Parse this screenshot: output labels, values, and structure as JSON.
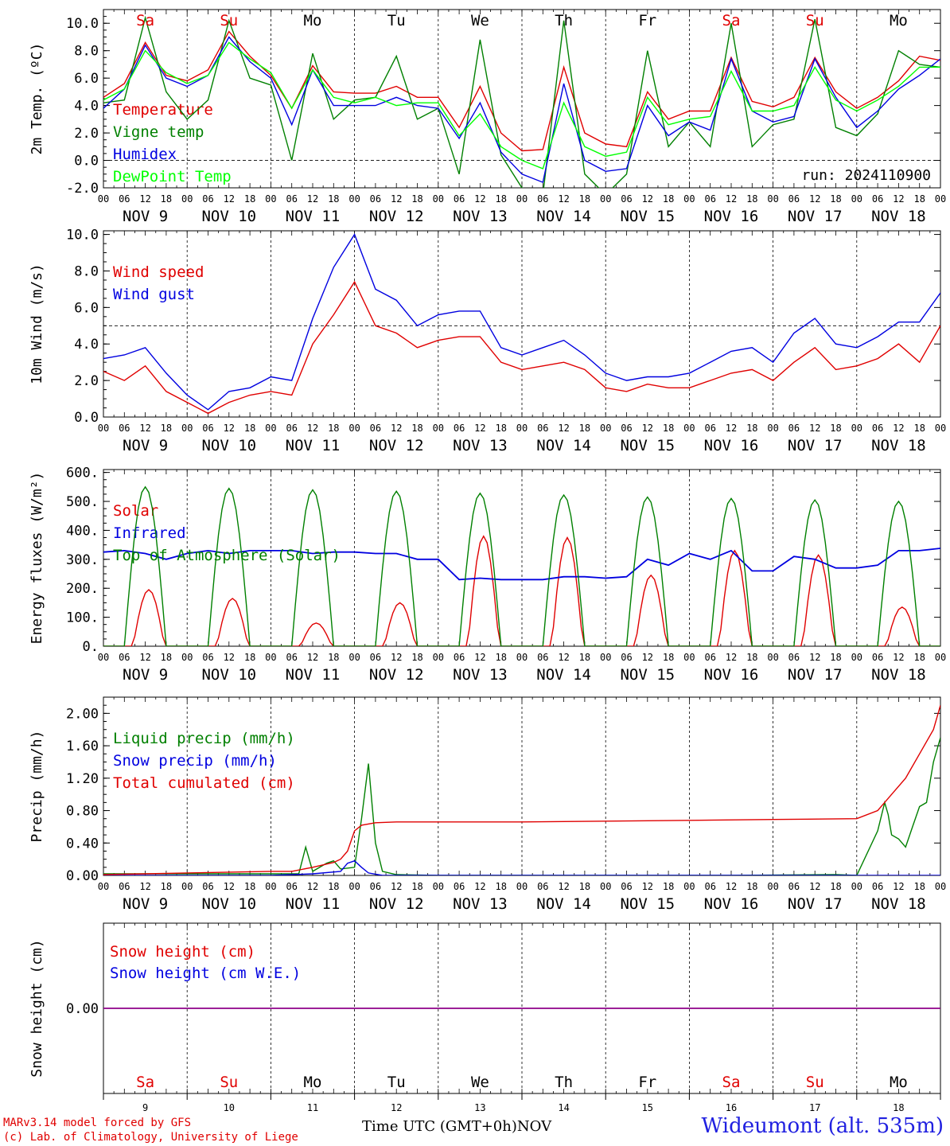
{
  "footer": {
    "credit_line1": "MARv3.14 model forced by GFS",
    "credit_line2": "(c) Lab. of Climatology, University of Liege",
    "xaxis_title": "Time UTC (GMT+0h)",
    "month": "NOV",
    "station": "Wideumont (alt. 535m)"
  },
  "colors": {
    "red": "#e00000",
    "green": "#008000",
    "blue": "#0000e0",
    "lightgreen": "#00ff00",
    "purple": "#8000a0"
  },
  "time_axis": {
    "hour_ticks": [
      "00",
      "06",
      "12",
      "18"
    ],
    "day_labels": [
      "NOV  9",
      "NOV 10",
      "NOV 11",
      "NOV 12",
      "NOV 13",
      "NOV 14",
      "NOV 15",
      "NOV 16",
      "NOV 17",
      "NOV 18"
    ],
    "weekdays": [
      "Sa",
      "Su",
      "Mo",
      "Tu",
      "We",
      "Th",
      "Fr",
      "Sa",
      "Su",
      "Mo"
    ],
    "weekend": [
      true,
      true,
      false,
      false,
      false,
      false,
      false,
      true,
      true,
      false
    ],
    "day_numbers": [
      "9",
      "10",
      "11",
      "12",
      "13",
      "14",
      "15",
      "16",
      "17",
      "18"
    ]
  },
  "chart_data": [
    {
      "type": "line",
      "ylabel": "2m Temp. (ºC)",
      "ylim": [
        -2,
        11
      ],
      "yticks": [
        "-2.0",
        "0.0",
        "2.0",
        "4.0",
        "6.0",
        "8.0",
        "10.0"
      ],
      "ytick_values": [
        -2,
        0,
        2,
        4,
        6,
        8,
        10
      ],
      "reference_line": 0,
      "run_label": "run: 2024110900",
      "series": [
        {
          "name": "Temperature",
          "color": "red",
          "x": [
            0,
            6,
            12,
            18,
            24,
            30,
            36,
            42,
            48,
            54,
            60,
            66,
            72,
            78,
            84,
            90,
            96,
            102,
            108,
            114,
            120,
            126,
            132,
            138,
            144,
            150,
            156,
            162,
            168,
            174,
            180,
            186,
            192,
            198,
            204,
            210,
            216,
            222,
            228,
            234,
            240
          ],
          "y": [
            4.6,
            5.6,
            8.6,
            6.2,
            5.8,
            6.6,
            9.4,
            7.6,
            6.2,
            3.8,
            6.9,
            5.0,
            4.9,
            4.9,
            5.4,
            4.6,
            4.6,
            2.4,
            5.4,
            2.0,
            0.7,
            0.8,
            6.8,
            2.0,
            1.2,
            1.0,
            5.0,
            3.0,
            3.6,
            3.6,
            7.5,
            4.3,
            3.9,
            4.6,
            7.5,
            5.0,
            3.8,
            4.6,
            5.8,
            7.6,
            7.3
          ]
        },
        {
          "name": "Vigne temp",
          "color": "green",
          "x": [
            0,
            6,
            12,
            18,
            24,
            30,
            36,
            42,
            48,
            54,
            60,
            66,
            72,
            78,
            84,
            90,
            96,
            102,
            108,
            114,
            120,
            126,
            132,
            138,
            144,
            150,
            156,
            162,
            168,
            174,
            180,
            186,
            192,
            198,
            204,
            210,
            216,
            222,
            228,
            234,
            240
          ],
          "y": [
            4.2,
            4.4,
            10.4,
            5.0,
            3.0,
            4.4,
            10.2,
            6.0,
            5.5,
            0.0,
            7.8,
            3.0,
            4.4,
            4.6,
            7.6,
            3.0,
            3.8,
            -1.0,
            8.8,
            0.4,
            -2.0,
            -2.5,
            10.2,
            -1.0,
            -2.5,
            -1.0,
            8.0,
            1.0,
            2.8,
            1.0,
            10.0,
            1.0,
            2.6,
            3.0,
            10.3,
            2.4,
            1.8,
            3.4,
            8.0,
            7.0,
            6.8
          ]
        },
        {
          "name": "Humidex",
          "color": "blue",
          "x": [
            0,
            6,
            12,
            18,
            24,
            30,
            36,
            42,
            48,
            54,
            60,
            66,
            72,
            78,
            84,
            90,
            96,
            102,
            108,
            114,
            120,
            126,
            132,
            138,
            144,
            150,
            156,
            162,
            168,
            174,
            180,
            186,
            192,
            198,
            204,
            210,
            216,
            222,
            228,
            234,
            240
          ],
          "y": [
            3.8,
            5.2,
            8.4,
            6.0,
            5.4,
            6.2,
            9.0,
            7.2,
            6.0,
            2.6,
            6.6,
            4.0,
            4.0,
            4.0,
            4.6,
            4.0,
            3.8,
            1.6,
            4.2,
            0.6,
            -1.0,
            -1.6,
            5.6,
            0.0,
            -0.8,
            -0.6,
            4.0,
            1.8,
            2.8,
            2.2,
            7.4,
            3.6,
            2.8,
            3.2,
            7.4,
            4.6,
            2.4,
            3.6,
            5.2,
            6.2,
            7.4
          ]
        },
        {
          "name": "DewPoint Temp",
          "color": "lightgreen",
          "x": [
            0,
            6,
            12,
            18,
            24,
            30,
            36,
            42,
            48,
            54,
            60,
            66,
            72,
            78,
            84,
            90,
            96,
            102,
            108,
            114,
            120,
            126,
            132,
            138,
            144,
            150,
            156,
            162,
            168,
            174,
            180,
            186,
            192,
            198,
            204,
            210,
            216,
            222,
            228,
            234,
            240
          ],
          "y": [
            4.4,
            5.2,
            8.0,
            6.4,
            5.6,
            6.2,
            8.6,
            7.4,
            6.4,
            3.8,
            6.6,
            4.6,
            4.2,
            4.6,
            4.0,
            4.2,
            4.2,
            1.8,
            3.4,
            1.0,
            0.0,
            -0.6,
            4.2,
            1.0,
            0.3,
            0.6,
            4.6,
            2.6,
            3.0,
            3.2,
            6.5,
            3.6,
            3.6,
            4.0,
            6.8,
            4.4,
            3.6,
            4.4,
            5.4,
            6.8,
            6.8
          ]
        }
      ]
    },
    {
      "type": "line",
      "ylabel": "10m Wind (m/s)",
      "ylim": [
        0,
        10.2
      ],
      "yticks": [
        "0.0",
        "2.0",
        "4.0",
        "6.0",
        "8.0",
        "10.0"
      ],
      "ytick_values": [
        0,
        2,
        4,
        6,
        8,
        10
      ],
      "reference_line": 5,
      "series": [
        {
          "name": "Wind speed",
          "color": "red",
          "x": [
            0,
            6,
            12,
            18,
            24,
            30,
            36,
            42,
            48,
            54,
            60,
            66,
            72,
            78,
            84,
            90,
            96,
            102,
            108,
            114,
            120,
            126,
            132,
            138,
            144,
            150,
            156,
            162,
            168,
            174,
            180,
            186,
            192,
            198,
            204,
            210,
            216,
            222,
            228,
            234,
            240
          ],
          "y": [
            2.5,
            2.0,
            2.8,
            1.4,
            0.8,
            0.2,
            0.8,
            1.2,
            1.4,
            1.2,
            4.0,
            5.6,
            7.4,
            5.0,
            4.6,
            3.8,
            4.2,
            4.4,
            4.4,
            3.0,
            2.6,
            2.8,
            3.0,
            2.6,
            1.6,
            1.4,
            1.8,
            1.6,
            1.6,
            2.0,
            2.4,
            2.6,
            2.0,
            3.0,
            3.8,
            2.6,
            2.8,
            3.2,
            4.0,
            3.0,
            5.0
          ]
        },
        {
          "name": "Wind gust",
          "color": "blue",
          "x": [
            0,
            6,
            12,
            18,
            24,
            30,
            36,
            42,
            48,
            54,
            60,
            66,
            72,
            78,
            84,
            90,
            96,
            102,
            108,
            114,
            120,
            126,
            132,
            138,
            144,
            150,
            156,
            162,
            168,
            174,
            180,
            186,
            192,
            198,
            204,
            210,
            216,
            222,
            228,
            234,
            240
          ],
          "y": [
            3.2,
            3.4,
            3.8,
            2.4,
            1.2,
            0.4,
            1.4,
            1.6,
            2.2,
            2.0,
            5.4,
            8.2,
            10.0,
            7.0,
            6.4,
            5.0,
            5.6,
            5.8,
            5.8,
            3.8,
            3.4,
            3.8,
            4.2,
            3.4,
            2.4,
            2.0,
            2.2,
            2.2,
            2.4,
            3.0,
            3.6,
            3.8,
            3.0,
            4.6,
            5.4,
            4.0,
            3.8,
            4.4,
            5.2,
            5.2,
            6.8
          ]
        }
      ]
    },
    {
      "type": "line",
      "ylabel": "Energy fluxes (W/m²)",
      "ylim": [
        0,
        610
      ],
      "yticks": [
        "0.",
        "100.",
        "200.",
        "300.",
        "400.",
        "500.",
        "600."
      ],
      "ytick_values": [
        0,
        100,
        200,
        300,
        400,
        500,
        600
      ],
      "series": [
        {
          "name": "Solar",
          "color": "red",
          "daily_peak_hour": 13,
          "daily_peak": [
            195,
            165,
            80,
            150,
            380,
            375,
            245,
            330,
            315,
            135
          ],
          "day_length_h": 9
        },
        {
          "name": "Infrared",
          "color": "blue",
          "x": [
            0,
            6,
            12,
            18,
            24,
            30,
            36,
            42,
            48,
            54,
            60,
            66,
            72,
            78,
            84,
            90,
            96,
            102,
            108,
            114,
            120,
            126,
            132,
            138,
            144,
            150,
            156,
            162,
            168,
            174,
            180,
            186,
            192,
            198,
            204,
            210,
            216,
            222,
            228,
            234,
            240
          ],
          "y": [
            325,
            330,
            320,
            300,
            320,
            330,
            320,
            330,
            330,
            330,
            320,
            325,
            325,
            320,
            320,
            300,
            300,
            230,
            235,
            230,
            230,
            230,
            240,
            240,
            235,
            240,
            300,
            280,
            320,
            300,
            330,
            260,
            260,
            310,
            300,
            270,
            270,
            280,
            330,
            330,
            338
          ]
        },
        {
          "name": "Top of Atmosphere (Solar)",
          "color": "green",
          "daily_peak_hour": 12,
          "daily_peak": [
            550,
            545,
            540,
            535,
            528,
            522,
            515,
            510,
            505,
            500
          ],
          "day_length_h": 12
        }
      ]
    },
    {
      "type": "line",
      "ylabel": "Precip (mm/h)",
      "ylim": [
        0,
        2.2
      ],
      "yticks": [
        "0.00",
        "0.40",
        "0.80",
        "1.20",
        "1.60",
        "2.00"
      ],
      "ytick_values": [
        0,
        0.4,
        0.8,
        1.2,
        1.6,
        2.0
      ],
      "series": [
        {
          "name": "Liquid precip (mm/h)",
          "color": "green",
          "x": [
            0,
            12,
            24,
            36,
            48,
            56,
            58,
            60,
            64,
            66,
            68,
            72,
            74,
            76,
            78,
            80,
            84,
            96,
            120,
            150,
            180,
            210,
            216,
            222,
            224,
            225,
            226,
            228,
            230,
            232,
            234,
            236,
            238,
            240
          ],
          "y": [
            0.02,
            0.02,
            0.02,
            0.02,
            0.02,
            0.02,
            0.35,
            0.05,
            0.15,
            0.18,
            0.08,
            0.1,
            0.7,
            1.38,
            0.4,
            0.05,
            0.01,
            0.0,
            0.0,
            0.0,
            0.0,
            0.01,
            0.0,
            0.55,
            0.9,
            0.75,
            0.5,
            0.45,
            0.35,
            0.6,
            0.85,
            0.9,
            1.4,
            1.7
          ]
        },
        {
          "name": "Snow precip (mm/h)",
          "color": "blue",
          "x": [
            0,
            48,
            60,
            68,
            70,
            72,
            74,
            76,
            80,
            96,
            240
          ],
          "y": [
            0.0,
            0.0,
            0.02,
            0.05,
            0.15,
            0.18,
            0.1,
            0.03,
            0.0,
            0.0,
            0.0
          ]
        },
        {
          "name": "Total cumulated (cm)",
          "color": "red",
          "x": [
            0,
            12,
            24,
            36,
            48,
            54,
            60,
            66,
            68,
            70,
            72,
            74,
            78,
            84,
            96,
            120,
            144,
            168,
            192,
            216,
            222,
            226,
            230,
            234,
            238,
            240
          ],
          "y": [
            0.01,
            0.02,
            0.03,
            0.04,
            0.05,
            0.05,
            0.1,
            0.16,
            0.2,
            0.3,
            0.55,
            0.62,
            0.65,
            0.66,
            0.66,
            0.66,
            0.67,
            0.68,
            0.69,
            0.7,
            0.8,
            1.0,
            1.2,
            1.5,
            1.8,
            2.1
          ]
        }
      ]
    },
    {
      "type": "line",
      "ylabel": "Snow height (cm)",
      "ylim": [
        -1,
        1
      ],
      "yticks": [
        "0.00"
      ],
      "ytick_values": [
        0
      ],
      "series": [
        {
          "name": "Snow height (cm)",
          "color": "red",
          "x": [
            0,
            240
          ],
          "y": [
            0,
            0
          ]
        },
        {
          "name": "Snow height (cm W.E.)",
          "color": "blue",
          "x": [
            0,
            240
          ],
          "y": [
            0,
            0
          ]
        }
      ]
    }
  ]
}
